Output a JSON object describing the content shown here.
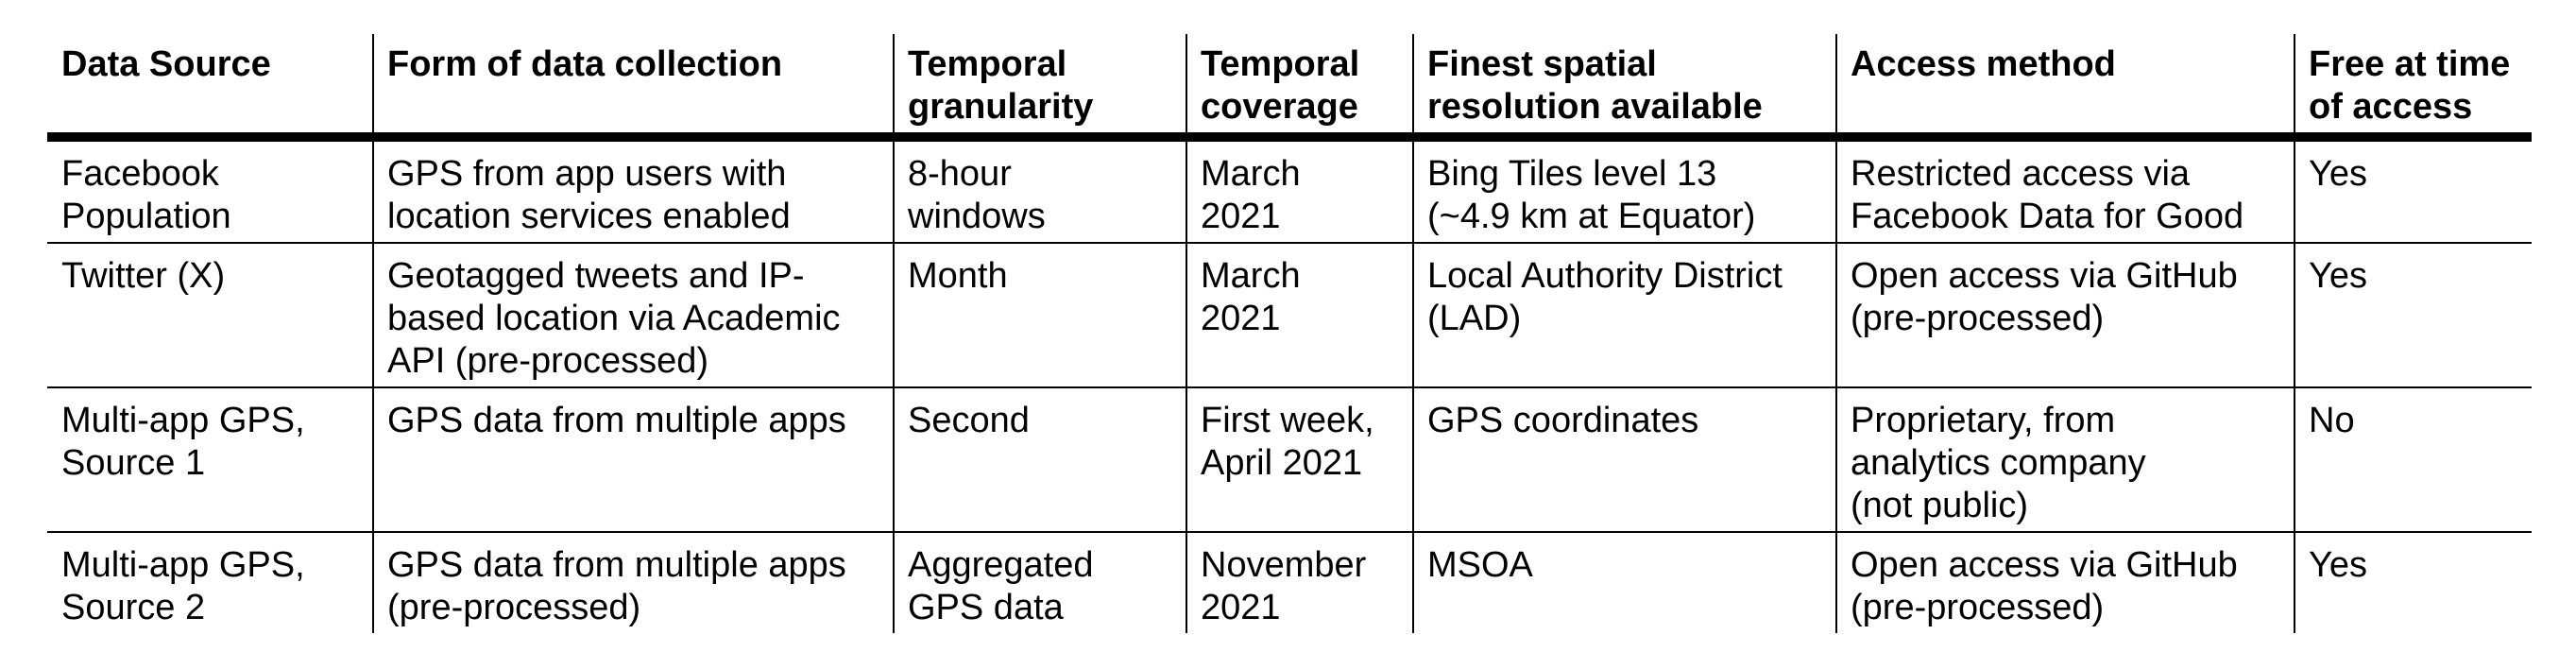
{
  "table": {
    "headers": [
      "Data Source",
      "Form of data collection",
      "Temporal\ngranularity",
      "Temporal\ncoverage",
      "Finest spatial\nresolution available",
      "Access method",
      "Free at time\nof access"
    ],
    "rows": [
      [
        "Facebook\nPopulation",
        "GPS from app users with\nlocation services enabled",
        "8-hour\nwindows",
        "March\n2021",
        "Bing Tiles level 13\n(~4.9 km at Equator)",
        "Restricted access via\nFacebook Data for Good",
        "Yes"
      ],
      [
        "Twitter (X)",
        "Geotagged tweets and IP-\nbased location via Academic\nAPI (pre-processed)",
        "Month",
        "March\n2021",
        "Local Authority District\n(LAD)",
        "Open access via GitHub\n(pre-processed)",
        "Yes"
      ],
      [
        "Multi-app GPS,\nSource 1",
        "GPS data from multiple apps",
        "Second",
        "First week,\nApril 2021",
        "GPS coordinates",
        "Proprietary, from\nanalytics company\n(not public)",
        "No"
      ],
      [
        "Multi-app GPS,\nSource 2",
        "GPS data from multiple apps\n(pre-processed)",
        "Aggregated\nGPS data",
        "November\n2021",
        "MSOA",
        "Open access via GitHub\n(pre-processed)",
        "Yes"
      ]
    ]
  }
}
